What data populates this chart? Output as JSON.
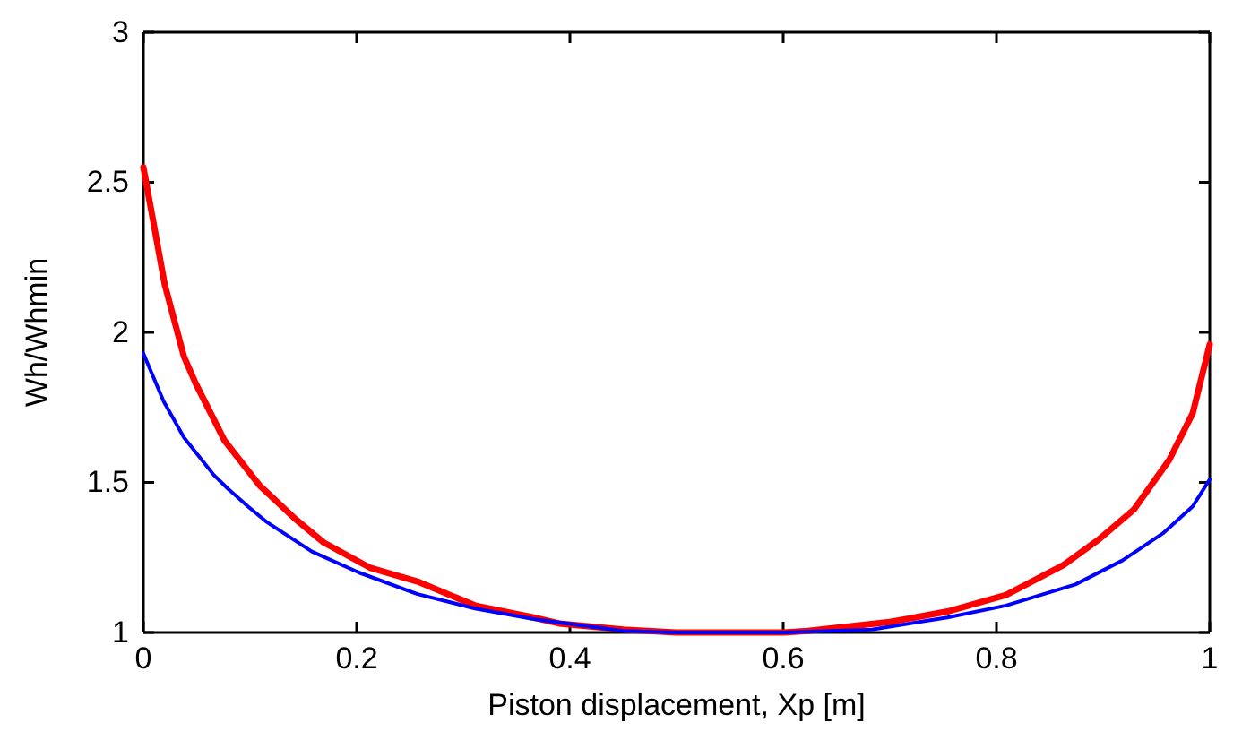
{
  "chart_data": {
    "type": "line",
    "xlabel": "Piston displacement, Xp [m]",
    "ylabel": "Wh/Whmin",
    "xlim": [
      0,
      1
    ],
    "ylim": [
      1,
      3
    ],
    "xticks": [
      0,
      0.2,
      0.4,
      0.6,
      0.8,
      1
    ],
    "yticks": [
      1,
      1.5,
      2,
      2.5,
      3
    ],
    "grid": false,
    "line_style": "solid",
    "marker": "none",
    "series": [
      {
        "color": "#ff0000",
        "x": [
          0,
          0.02,
          0.038,
          0.049,
          0.076,
          0.109,
          0.142,
          0.169,
          0.213,
          0.257,
          0.311,
          0.366,
          0.39,
          0.45,
          0.5,
          0.55,
          0.6,
          0.623,
          0.7,
          0.754,
          0.809,
          0.863,
          0.896,
          0.929,
          0.962,
          0.984,
          1
        ],
        "values": [
          2.55,
          2.16,
          1.92,
          1.83,
          1.64,
          1.49,
          1.38,
          1.3,
          1.215,
          1.17,
          1.09,
          1.05,
          1.03,
          1.01,
          1,
          1,
          1,
          1.005,
          1.035,
          1.07,
          1.125,
          1.225,
          1.31,
          1.41,
          1.575,
          1.73,
          1.96
        ]
      },
      {
        "color": "#0000ff",
        "x": [
          0,
          0.019,
          0.038,
          0.066,
          0.079,
          0.098,
          0.115,
          0.158,
          0.202,
          0.257,
          0.311,
          0.366,
          0.45,
          0.5,
          0.55,
          0.6,
          0.683,
          0.754,
          0.809,
          0.874,
          0.918,
          0.956,
          0.984,
          1
        ],
        "values": [
          1.93,
          1.77,
          1.65,
          1.525,
          1.48,
          1.42,
          1.37,
          1.27,
          1.2,
          1.128,
          1.08,
          1.045,
          1.005,
          1,
          1,
          1,
          1.01,
          1.05,
          1.09,
          1.16,
          1.24,
          1.33,
          1.42,
          1.51
        ]
      }
    ]
  }
}
